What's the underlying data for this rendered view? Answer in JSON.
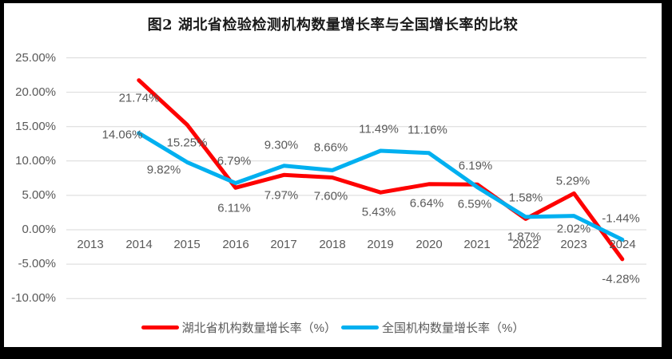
{
  "chart_data": {
    "type": "line",
    "title": "图2 湖北省检验检测机构数量增长率与全国增长率的比较",
    "categories": [
      "2013",
      "2014",
      "2015",
      "2016",
      "2017",
      "2018",
      "2019",
      "2020",
      "2021",
      "2022",
      "2023",
      "2024"
    ],
    "series": [
      {
        "name": "湖北省机构数量增长率（%）",
        "color": "#FE0000",
        "values": [
          null,
          21.74,
          15.25,
          6.11,
          7.97,
          7.6,
          5.43,
          6.64,
          6.59,
          1.58,
          5.29,
          -4.28
        ],
        "labels": [
          "",
          "21.74%",
          "15.25%",
          "6.11%",
          "7.97%",
          "7.60%",
          "5.43%",
          "6.64%",
          "6.59%",
          "1.58%",
          "5.29%",
          "-4.28%"
        ]
      },
      {
        "name": "全国机构数量增长率（%）",
        "color": "#00B0F0",
        "values": [
          null,
          14.06,
          9.82,
          6.79,
          9.3,
          8.66,
          11.49,
          11.16,
          6.19,
          1.87,
          2.02,
          -1.44
        ],
        "labels": [
          "",
          "14.06%",
          "9.82%",
          "6.79%",
          "9.30%",
          "8.66%",
          "11.49%",
          "11.16%",
          "6.19%",
          "1.87%",
          "2.02%",
          "-1.44%"
        ]
      }
    ],
    "y_axis": {
      "tick_labels": [
        "25.00%",
        "20.00%",
        "15.00%",
        "10.00%",
        "5.00%",
        "0.00%",
        "-5.00%",
        "-10.00%"
      ],
      "tick_values": [
        25,
        20,
        15,
        10,
        5,
        0,
        -5,
        -10
      ]
    },
    "ylim": [
      -10,
      25
    ],
    "grid": true,
    "grid_color": "#D9D9D9",
    "label_color": "#595959",
    "legend_position": "bottom"
  }
}
